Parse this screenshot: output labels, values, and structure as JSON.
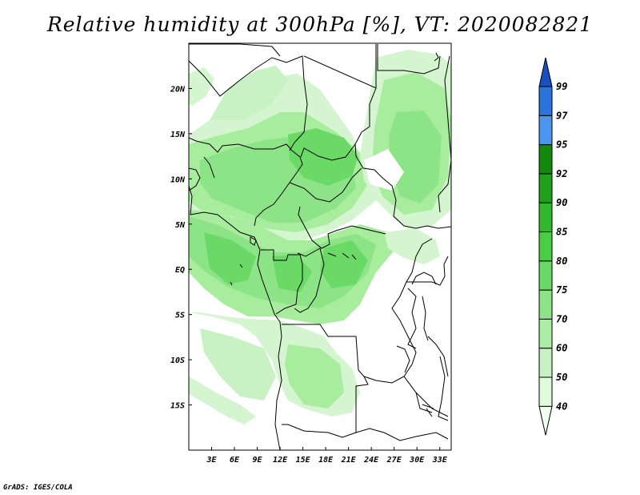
{
  "title": "Relative humidity at 300hPa [%], VT: 2020082821",
  "credit": "GrADS: IGES/COLA",
  "map": {
    "lon_range": [
      0,
      34.5
    ],
    "lat_range": [
      -20,
      25
    ],
    "lon_ticks": [
      "3E",
      "6E",
      "9E",
      "12E",
      "15E",
      "18E",
      "21E",
      "24E",
      "27E",
      "30E",
      "33E"
    ],
    "lat_ticks": [
      "20N",
      "15N",
      "10N",
      "5N",
      "EQ",
      "5S",
      "10S",
      "15S"
    ]
  },
  "colorbar": {
    "levels": [
      "40",
      "50",
      "60",
      "70",
      "75",
      "80",
      "85",
      "90",
      "92",
      "95",
      "97",
      "99"
    ],
    "colors": [
      "#f0fff0",
      "#e0fadc",
      "#c8f2c4",
      "#aaeea4",
      "#8ce486",
      "#6ad966",
      "#4acc44",
      "#32b82c",
      "#20a01b",
      "#118a0c",
      "#4a96ee",
      "#2a74dc",
      "#1850c0"
    ]
  }
}
